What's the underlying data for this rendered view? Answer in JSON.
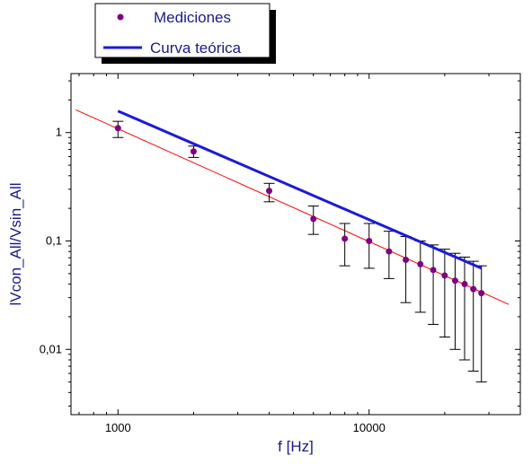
{
  "chart_data": {
    "type": "scatter",
    "title": "",
    "xlabel": "f [Hz]",
    "ylabel": "lVcon_All/Vsin_All",
    "x_scale": "log",
    "y_scale": "log",
    "xlim": [
      650,
      40000
    ],
    "ylim": [
      0.0025,
      3.5
    ],
    "grid": false,
    "legend_position": "top-left",
    "x_ticks": [
      {
        "value": 1000,
        "label": "1000"
      },
      {
        "value": 10000,
        "label": "10000"
      }
    ],
    "y_ticks": [
      {
        "value": 0.01,
        "label": "0,01"
      },
      {
        "value": 0.1,
        "label": "0,1"
      },
      {
        "value": 1,
        "label": "1"
      }
    ],
    "series": [
      {
        "name": "Mediciones",
        "kind": "points_with_error_bars",
        "color": "#800080",
        "points": [
          {
            "x": 1000,
            "y": 1.1,
            "y_low": 0.9,
            "y_high": 1.27
          },
          {
            "x": 2000,
            "y": 0.67,
            "y_low": 0.59,
            "y_high": 0.75
          },
          {
            "x": 4000,
            "y": 0.29,
            "y_low": 0.23,
            "y_high": 0.34
          },
          {
            "x": 6000,
            "y": 0.16,
            "y_low": 0.115,
            "y_high": 0.21
          },
          {
            "x": 8000,
            "y": 0.105,
            "y_low": 0.059,
            "y_high": 0.145
          },
          {
            "x": 10000,
            "y": 0.1,
            "y_low": 0.056,
            "y_high": 0.145
          },
          {
            "x": 12000,
            "y": 0.08,
            "y_low": 0.045,
            "y_high": 0.123
          },
          {
            "x": 14000,
            "y": 0.067,
            "y_low": 0.027,
            "y_high": 0.11
          },
          {
            "x": 16000,
            "y": 0.061,
            "y_low": 0.022,
            "y_high": 0.1
          },
          {
            "x": 18000,
            "y": 0.054,
            "y_low": 0.017,
            "y_high": 0.092
          },
          {
            "x": 20000,
            "y": 0.048,
            "y_low": 0.013,
            "y_high": 0.084
          },
          {
            "x": 22000,
            "y": 0.043,
            "y_low": 0.01,
            "y_high": 0.077
          },
          {
            "x": 24000,
            "y": 0.04,
            "y_low": 0.008,
            "y_high": 0.071
          },
          {
            "x": 26000,
            "y": 0.036,
            "y_low": 0.0063,
            "y_high": 0.065
          },
          {
            "x": 28000,
            "y": 0.033,
            "y_low": 0.005,
            "y_high": 0.059
          }
        ]
      },
      {
        "name": "Curva teórica",
        "kind": "line",
        "color": "#1a1adf",
        "points": [
          {
            "x": 1000,
            "y": 1.58
          },
          {
            "x": 28000,
            "y": 0.056
          }
        ]
      },
      {
        "name": "",
        "kind": "line",
        "color": "#ff0000",
        "points": [
          {
            "x": 680,
            "y": 1.62
          },
          {
            "x": 36000,
            "y": 0.026
          }
        ]
      }
    ]
  }
}
